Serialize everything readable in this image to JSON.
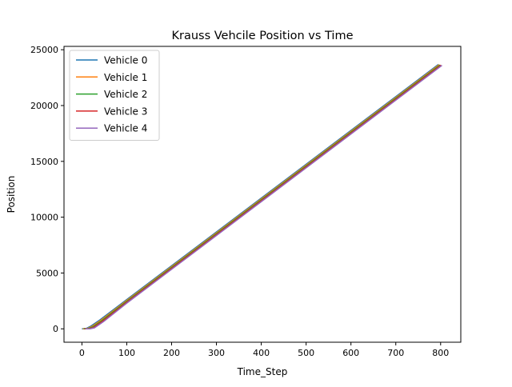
{
  "chart_data": {
    "type": "line",
    "title": "Krauss Vehcile Position vs Time",
    "xlabel": "Time_Step",
    "ylabel": "Position",
    "xlim": [
      -40,
      845
    ],
    "ylim": [
      -1200,
      25300
    ],
    "xticks": [
      0,
      100,
      200,
      300,
      400,
      500,
      600,
      700,
      800
    ],
    "xtick_labels": [
      "0",
      "100",
      "200",
      "300",
      "400",
      "500",
      "600",
      "700",
      "800"
    ],
    "yticks": [
      0,
      5000,
      10000,
      15000,
      20000,
      25000
    ],
    "ytick_labels": [
      "0",
      "5000",
      "10000",
      "15000",
      "20000",
      "25000"
    ],
    "grid": false,
    "legend_position": "top-left",
    "series": [
      {
        "name": "Vehicle 0",
        "color": "#1f77b4",
        "x": [
          0,
          10,
          20,
          40,
          100,
          200,
          400,
          600,
          795
        ],
        "y": [
          0,
          40,
          250,
          800,
          2620,
          5650,
          11710,
          17770,
          23680
        ]
      },
      {
        "name": "Vehicle 1",
        "color": "#ff7f0e",
        "x": [
          2,
          12,
          22,
          42,
          100,
          200,
          400,
          600,
          797
        ],
        "y": [
          0,
          30,
          210,
          760,
          2540,
          5570,
          11630,
          17690,
          23660
        ]
      },
      {
        "name": "Vehicle 2",
        "color": "#2ca02c",
        "x": [
          4,
          14,
          24,
          44,
          100,
          200,
          400,
          600,
          799
        ],
        "y": [
          0,
          20,
          170,
          720,
          2460,
          5490,
          11550,
          17610,
          23640
        ]
      },
      {
        "name": "Vehicle 3",
        "color": "#d62728",
        "x": [
          6,
          16,
          26,
          46,
          100,
          200,
          400,
          600,
          801
        ],
        "y": [
          0,
          10,
          130,
          680,
          2380,
          5410,
          11470,
          17530,
          23620
        ]
      },
      {
        "name": "Vehicle 4",
        "color": "#9467bd",
        "x": [
          8,
          18,
          28,
          48,
          100,
          200,
          400,
          600,
          803
        ],
        "y": [
          0,
          0,
          90,
          640,
          2300,
          5330,
          11390,
          17450,
          23600
        ]
      }
    ]
  }
}
